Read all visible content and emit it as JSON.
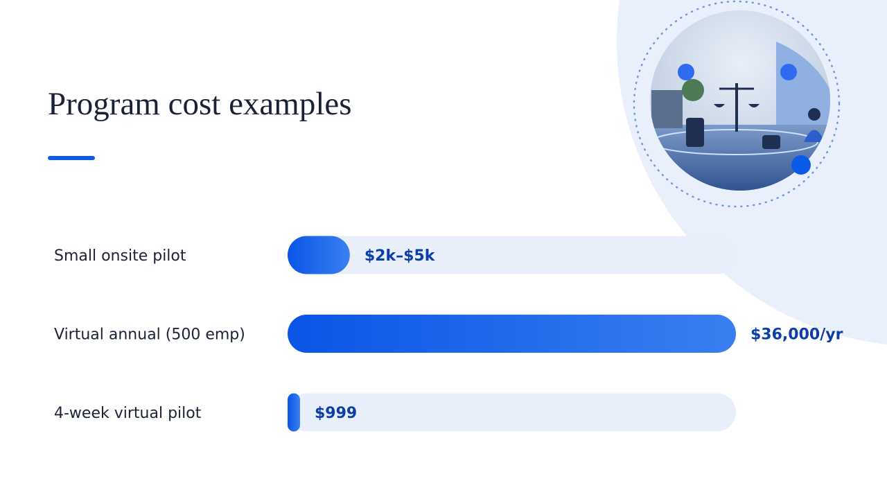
{
  "chart_data": {
    "type": "bar",
    "title": "Program cost examples",
    "categories": [
      "Small onsite pilot",
      "Virtual annual (500 emp)",
      "4-week virtual pilot"
    ],
    "values": [
      5000,
      36000,
      999
    ],
    "value_labels": [
      "$2k–$5k",
      "$36,000/yr",
      "$999"
    ],
    "xlim": [
      0,
      36000
    ],
    "color": "#0a55e6",
    "track_color": "#e8effb"
  }
}
